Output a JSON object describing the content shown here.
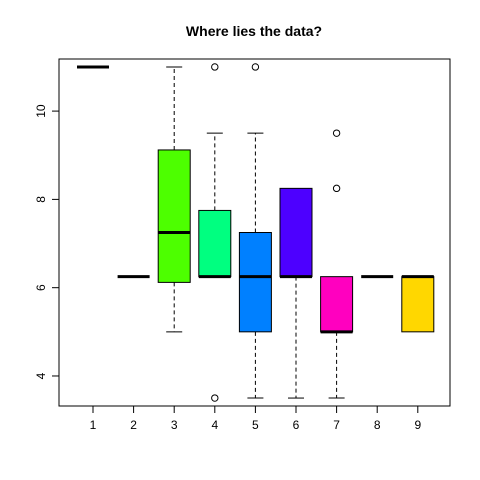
{
  "chart_data": {
    "type": "box",
    "title": "Where lies the data?",
    "xlabel": "",
    "ylabel": "",
    "ylim": [
      3.32,
      11.18
    ],
    "yticks": [
      4,
      6,
      8,
      10
    ],
    "categories": [
      "1",
      "2",
      "3",
      "4",
      "5",
      "6",
      "7",
      "8",
      "9"
    ],
    "boxes": [
      {
        "label": "1",
        "whisker_low": 11,
        "q1": 11,
        "median": 11,
        "q3": 11,
        "whisker_high": 11,
        "outliers": [],
        "color": "#FF0000"
      },
      {
        "label": "2",
        "whisker_low": 6.25,
        "q1": 6.25,
        "median": 6.25,
        "q3": 6.25,
        "whisker_high": 6.25,
        "outliers": [],
        "color": "#FFBF00"
      },
      {
        "label": "3",
        "whisker_low": 5.0,
        "q1": 6.12,
        "median": 7.25,
        "q3": 9.12,
        "whisker_high": 11.0,
        "outliers": [],
        "color": "#4DFF00"
      },
      {
        "label": "4",
        "whisker_low": 6.25,
        "q1": 6.25,
        "median": 6.25,
        "q3": 7.75,
        "whisker_high": 9.5,
        "outliers": [
          3.5,
          11.0
        ],
        "color": "#00FF80"
      },
      {
        "label": "5",
        "whisker_low": 3.5,
        "q1": 5.0,
        "median": 6.25,
        "q3": 7.25,
        "whisker_high": 9.5,
        "outliers": [
          11.0
        ],
        "color": "#0080FF"
      },
      {
        "label": "6",
        "whisker_low": 3.5,
        "q1": 6.25,
        "median": 6.25,
        "q3": 8.25,
        "whisker_high": 8.25,
        "outliers": [],
        "color": "#4D00FF"
      },
      {
        "label": "7",
        "whisker_low": 3.5,
        "q1": 5.0,
        "median": 5.0,
        "q3": 6.25,
        "whisker_high": 6.25,
        "outliers": [
          8.25,
          9.5
        ],
        "color": "#FF00BF"
      },
      {
        "label": "8",
        "whisker_low": 6.25,
        "q1": 6.25,
        "median": 6.25,
        "q3": 6.25,
        "whisker_high": 6.25,
        "outliers": [],
        "color": "#FF0000"
      },
      {
        "label": "9",
        "whisker_low": 5.0,
        "q1": 5.0,
        "median": 6.25,
        "q3": 6.25,
        "whisker_high": 6.25,
        "outliers": [],
        "color": "#FFD700"
      }
    ],
    "grid": false,
    "legend": "none"
  }
}
